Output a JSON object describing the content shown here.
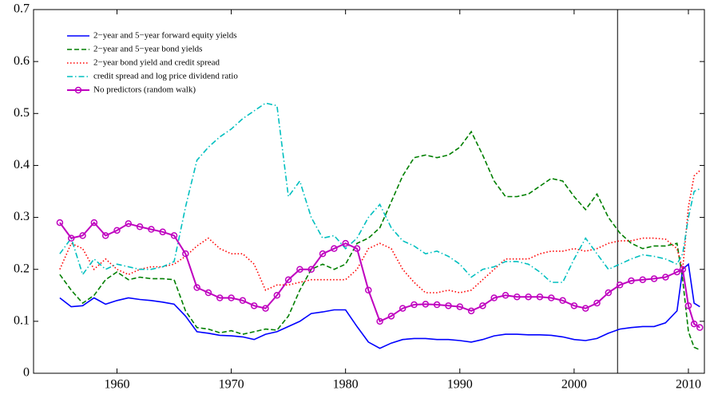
{
  "chart_data": {
    "type": "line",
    "x": [
      1955,
      1956,
      1957,
      1958,
      1959,
      1960,
      1961,
      1962,
      1963,
      1964,
      1965,
      1966,
      1967,
      1968,
      1969,
      1970,
      1971,
      1972,
      1973,
      1974,
      1975,
      1976,
      1977,
      1978,
      1979,
      1980,
      1981,
      1982,
      1983,
      1984,
      1985,
      1986,
      1987,
      1988,
      1989,
      1990,
      1991,
      1992,
      1993,
      1994,
      1995,
      1996,
      1997,
      1998,
      1999,
      2000,
      2001,
      2002,
      2003,
      2004,
      2005,
      2006,
      2007,
      2008,
      2009,
      2009.5,
      2010,
      2010.5,
      2011
    ],
    "series": [
      {
        "name": "2−year and 5−year forward equity yields",
        "color": "#0000ff",
        "style": "solid",
        "values": [
          0.145,
          0.128,
          0.13,
          0.145,
          0.133,
          0.14,
          0.145,
          0.142,
          0.14,
          0.137,
          0.133,
          0.11,
          0.08,
          0.077,
          0.073,
          0.072,
          0.07,
          0.065,
          0.075,
          0.08,
          0.09,
          0.1,
          0.115,
          0.118,
          0.122,
          0.122,
          0.09,
          0.06,
          0.048,
          0.058,
          0.065,
          0.067,
          0.067,
          0.065,
          0.065,
          0.063,
          0.06,
          0.065,
          0.072,
          0.075,
          0.075,
          0.074,
          0.074,
          0.073,
          0.07,
          0.065,
          0.063,
          0.067,
          0.077,
          0.085,
          0.088,
          0.09,
          0.09,
          0.097,
          0.12,
          0.2,
          0.21,
          0.135,
          0.128
        ]
      },
      {
        "name": "2−year and 5−year bond yields",
        "color": "#007f00",
        "style": "dashed",
        "values": [
          0.19,
          0.16,
          0.135,
          0.15,
          0.18,
          0.195,
          0.18,
          0.185,
          0.182,
          0.182,
          0.18,
          0.12,
          0.088,
          0.085,
          0.078,
          0.082,
          0.075,
          0.08,
          0.085,
          0.083,
          0.11,
          0.16,
          0.2,
          0.21,
          0.2,
          0.21,
          0.25,
          0.26,
          0.28,
          0.33,
          0.38,
          0.415,
          0.42,
          0.415,
          0.42,
          0.435,
          0.465,
          0.42,
          0.37,
          0.34,
          0.34,
          0.345,
          0.36,
          0.375,
          0.37,
          0.34,
          0.315,
          0.345,
          0.3,
          0.27,
          0.25,
          0.24,
          0.245,
          0.245,
          0.25,
          0.18,
          0.08,
          0.05,
          0.045
        ]
      },
      {
        "name": "2−year bond yield and credit spread",
        "color": "#ff0000",
        "style": "dotted",
        "values": [
          0.2,
          0.25,
          0.24,
          0.2,
          0.22,
          0.2,
          0.19,
          0.2,
          0.205,
          0.205,
          0.21,
          0.225,
          0.245,
          0.26,
          0.24,
          0.23,
          0.23,
          0.21,
          0.16,
          0.17,
          0.17,
          0.175,
          0.18,
          0.18,
          0.18,
          0.18,
          0.2,
          0.24,
          0.25,
          0.24,
          0.2,
          0.175,
          0.155,
          0.155,
          0.16,
          0.155,
          0.16,
          0.18,
          0.2,
          0.22,
          0.22,
          0.22,
          0.23,
          0.235,
          0.235,
          0.24,
          0.235,
          0.24,
          0.25,
          0.255,
          0.255,
          0.26,
          0.26,
          0.258,
          0.24,
          0.2,
          0.32,
          0.38,
          0.39
        ]
      },
      {
        "name": "credit spread and log price dividend ratio",
        "color": "#00bfbf",
        "style": "dashdot",
        "values": [
          0.23,
          0.26,
          0.19,
          0.22,
          0.2,
          0.21,
          0.205,
          0.2,
          0.2,
          0.205,
          0.215,
          0.32,
          0.41,
          0.435,
          0.455,
          0.47,
          0.49,
          0.505,
          0.52,
          0.515,
          0.34,
          0.37,
          0.3,
          0.26,
          0.265,
          0.24,
          0.26,
          0.3,
          0.325,
          0.28,
          0.255,
          0.245,
          0.23,
          0.235,
          0.225,
          0.21,
          0.185,
          0.2,
          0.205,
          0.215,
          0.215,
          0.21,
          0.195,
          0.175,
          0.175,
          0.22,
          0.26,
          0.23,
          0.2,
          0.21,
          0.22,
          0.228,
          0.225,
          0.22,
          0.21,
          0.23,
          0.3,
          0.35,
          0.355
        ]
      },
      {
        "name": "No predictors (random walk)",
        "color": "#bf00bf",
        "style": "solid",
        "marker": "o",
        "values": [
          0.29,
          0.26,
          0.265,
          0.29,
          0.265,
          0.275,
          0.288,
          0.282,
          0.277,
          0.272,
          0.265,
          0.23,
          0.165,
          0.155,
          0.145,
          0.145,
          0.14,
          0.13,
          0.125,
          0.15,
          0.18,
          0.2,
          0.2,
          0.23,
          0.24,
          0.25,
          0.24,
          0.16,
          0.1,
          0.11,
          0.125,
          0.132,
          0.133,
          0.132,
          0.13,
          0.128,
          0.12,
          0.13,
          0.145,
          0.15,
          0.147,
          0.147,
          0.147,
          0.145,
          0.14,
          0.13,
          0.125,
          0.135,
          0.155,
          0.17,
          0.178,
          0.18,
          0.182,
          0.185,
          0.195,
          0.2,
          0.13,
          0.095,
          0.088
        ]
      }
    ],
    "vline": 2003.8,
    "xlim": [
      1952.7,
      2011.4
    ],
    "xticks": [
      1960,
      1970,
      1980,
      1990,
      2000,
      2010
    ],
    "ylim": [
      0,
      0.7
    ],
    "yticks": [
      0,
      0.1,
      0.2,
      0.3,
      0.4,
      0.5,
      0.6,
      0.7
    ],
    "legend": "upper-left"
  }
}
